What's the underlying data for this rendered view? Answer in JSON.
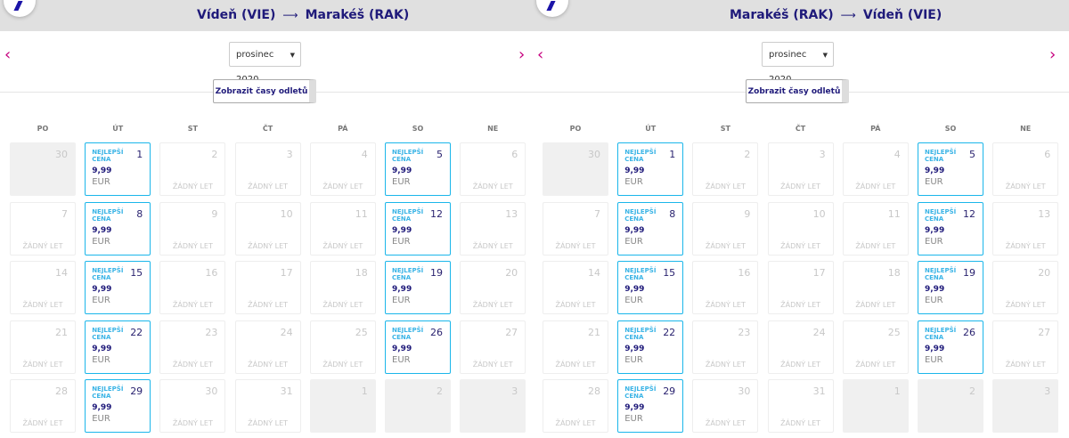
{
  "colors": {
    "brand": "#1f1a7a",
    "accent": "#c6007e",
    "best": "#1bb6ea"
  },
  "panels": [
    {
      "from": "Vídeň (VIE)",
      "arrow": "⟶",
      "to": "Marakéš (RAK)",
      "month": "prosinec 2020",
      "times_button": "Zobrazit časy odletů"
    },
    {
      "from": "Marakéš (RAK)",
      "arrow": "⟶",
      "to": "Vídeň (VIE)",
      "month": "prosinec 2020",
      "times_button": "Zobrazit časy odletů"
    }
  ],
  "weekdays": [
    "PO",
    "ÚT",
    "ST",
    "ČT",
    "PÁ",
    "SO",
    "NE"
  ],
  "labels": {
    "best": "NEJLEPŠÍ CENA",
    "no_flight": "ŽÁDNÝ LET",
    "price": "9,99",
    "currency": "EUR"
  },
  "days": [
    {
      "d": "30",
      "t": "outside"
    },
    {
      "d": "1",
      "t": "best"
    },
    {
      "d": "2",
      "t": "none"
    },
    {
      "d": "3",
      "t": "none"
    },
    {
      "d": "4",
      "t": "none"
    },
    {
      "d": "5",
      "t": "best"
    },
    {
      "d": "6",
      "t": "none"
    },
    {
      "d": "7",
      "t": "none"
    },
    {
      "d": "8",
      "t": "best"
    },
    {
      "d": "9",
      "t": "none"
    },
    {
      "d": "10",
      "t": "none"
    },
    {
      "d": "11",
      "t": "none"
    },
    {
      "d": "12",
      "t": "best"
    },
    {
      "d": "13",
      "t": "none"
    },
    {
      "d": "14",
      "t": "none"
    },
    {
      "d": "15",
      "t": "best"
    },
    {
      "d": "16",
      "t": "none"
    },
    {
      "d": "17",
      "t": "none"
    },
    {
      "d": "18",
      "t": "none"
    },
    {
      "d": "19",
      "t": "best"
    },
    {
      "d": "20",
      "t": "none"
    },
    {
      "d": "21",
      "t": "none"
    },
    {
      "d": "22",
      "t": "best"
    },
    {
      "d": "23",
      "t": "none"
    },
    {
      "d": "24",
      "t": "none"
    },
    {
      "d": "25",
      "t": "none"
    },
    {
      "d": "26",
      "t": "best"
    },
    {
      "d": "27",
      "t": "none"
    },
    {
      "d": "28",
      "t": "none"
    },
    {
      "d": "29",
      "t": "best"
    },
    {
      "d": "30",
      "t": "none"
    },
    {
      "d": "31",
      "t": "none"
    },
    {
      "d": "1",
      "t": "outside"
    },
    {
      "d": "2",
      "t": "outside"
    },
    {
      "d": "3",
      "t": "outside"
    }
  ]
}
